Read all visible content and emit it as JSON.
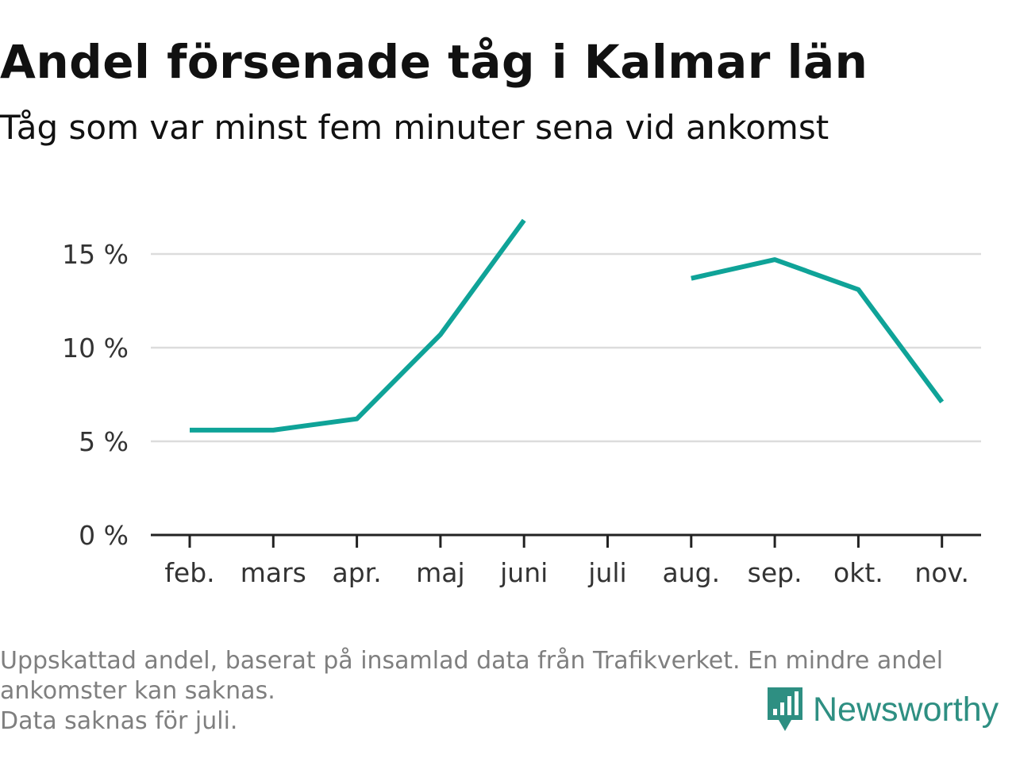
{
  "title": "Andel försenade tåg i Kalmar län",
  "subtitle": "Tåg som var minst fem minuter sena vid ankomst",
  "notes": [
    "Uppskattad andel, baserat på insamlad data från Trafikverket. En mindre andel",
    "ankomster kan saknas.",
    "Data saknas för juli."
  ],
  "brand": {
    "name": "Newsworthy",
    "icon": "newsworthy-logo-icon",
    "color": "#2e8f82"
  },
  "chart_data": {
    "type": "line",
    "categories": [
      "feb.",
      "mars",
      "apr.",
      "maj",
      "juni",
      "juli",
      "aug.",
      "sep.",
      "okt.",
      "nov."
    ],
    "series": [
      {
        "values": [
          5.6,
          5.6,
          6.2,
          10.7,
          16.8,
          null,
          13.7,
          14.7,
          13.1,
          7.1
        ]
      }
    ],
    "yticks": [
      0,
      5,
      10,
      15
    ],
    "ytick_labels": [
      "0 %",
      "5 %",
      "10 %",
      "15 %"
    ],
    "ylim": [
      0,
      17
    ],
    "xlabel": "",
    "ylabel": "",
    "grid": true,
    "line_color": "#0fa398",
    "grid_color": "#dcdcdc",
    "axis_color": "#222222"
  }
}
